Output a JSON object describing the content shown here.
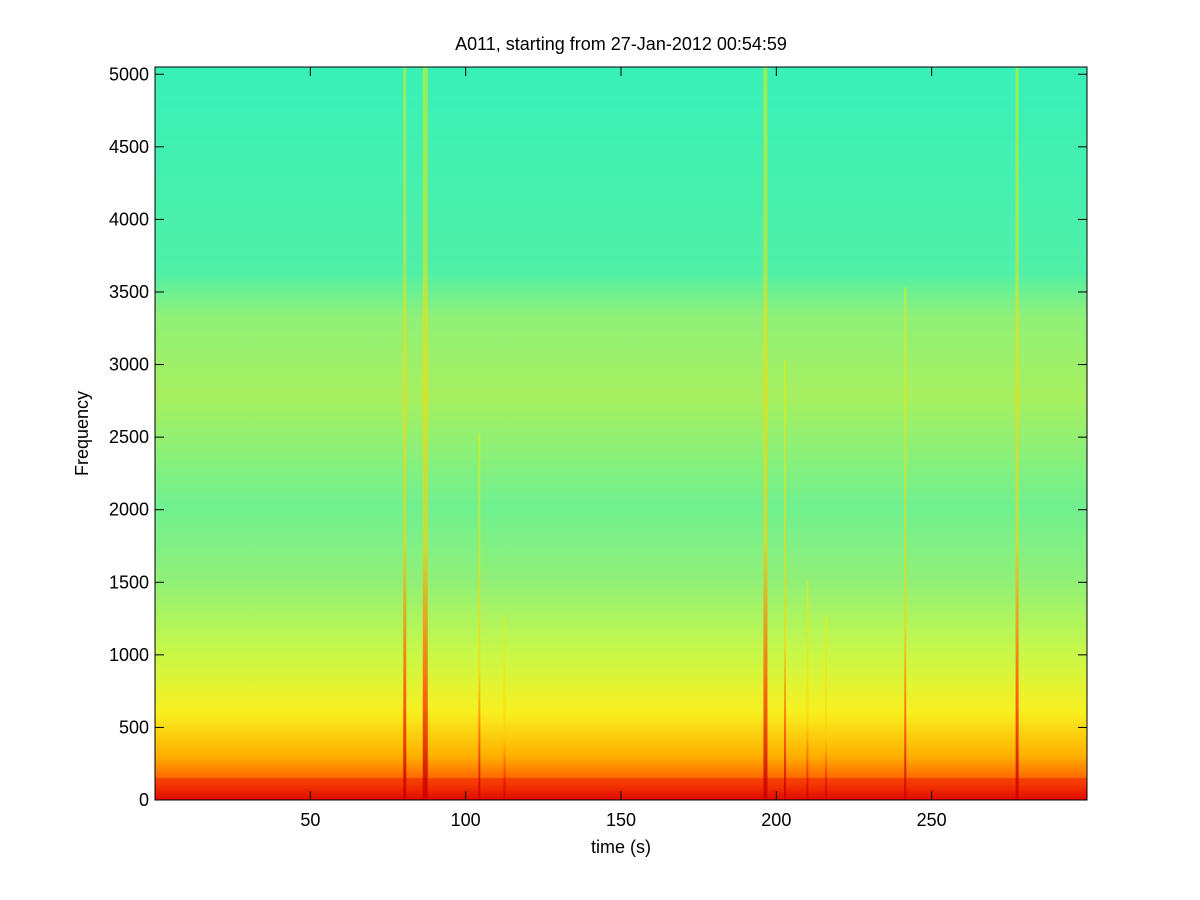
{
  "chart_data": {
    "type": "spectrogram",
    "title": "A011, starting from 27-Jan-2012 00:54:59",
    "x_label": "time (s)",
    "y_label": "Frequency",
    "xlim": [
      0,
      300
    ],
    "ylim": [
      0,
      5050
    ],
    "xticks": [
      50,
      100,
      150,
      200,
      250
    ],
    "yticks": [
      0,
      500,
      1000,
      1500,
      2000,
      2500,
      3000,
      3500,
      4000,
      4500,
      5000
    ],
    "colormap": "jet",
    "box": true
  }
}
